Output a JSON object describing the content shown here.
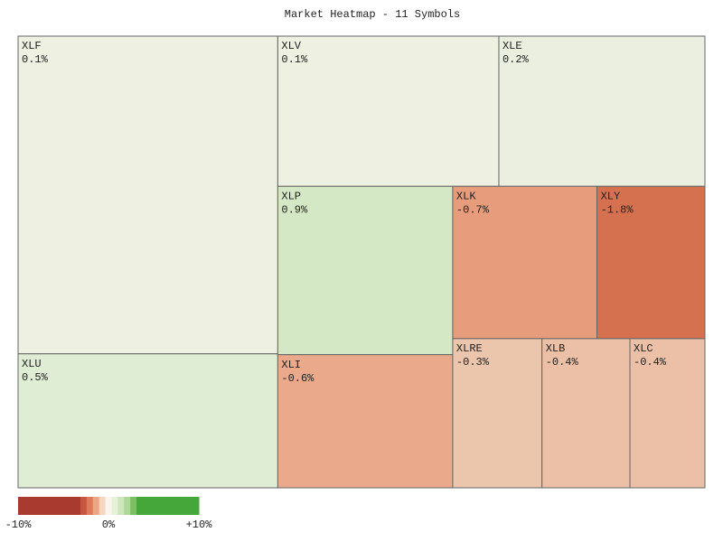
{
  "chart_data": {
    "type": "treemap",
    "title": "Market Heatmap - 11 Symbols",
    "categories": [
      "XLF",
      "XLU",
      "XLV",
      "XLE",
      "XLP",
      "XLI",
      "XLK",
      "XLY",
      "XLRE",
      "XLB",
      "XLC"
    ],
    "values": [
      0.1,
      0.5,
      0.1,
      0.2,
      0.9,
      -0.6,
      -0.7,
      -1.8,
      -0.3,
      -0.4,
      -0.4
    ],
    "value_labels": [
      "0.1%",
      "0.5%",
      "0.1%",
      "0.2%",
      "0.9%",
      "-0.6%",
      "-0.7%",
      "-1.8%",
      "-0.3%",
      "-0.4%",
      "-0.4%"
    ],
    "sizes": [
      100737,
      42476,
      40533,
      37785,
      35953,
      28431,
      26827,
      20072,
      16254,
      16014,
      13659
    ],
    "colors": [
      "#eef0e2",
      "#e0edd5",
      "#eef0e2",
      "#ebefe0",
      "#d5e8c5",
      "#e9a98a",
      "#e79c7b",
      "#d5714e",
      "#ecc5ad",
      "#ebc0a6",
      "#ebc0a6"
    ],
    "colorbar": {
      "lim": [
        -10,
        10
      ],
      "ticks": [
        {
          "value": -10,
          "label": "-10%"
        },
        {
          "value": 0,
          "label": "0%"
        },
        {
          "value": 10,
          "label": "+10%"
        }
      ],
      "colors": [
        "#a83a2f",
        "#a83a2f",
        "#a83a2f",
        "#a83a2f",
        "#a83a2f",
        "#a83a2f",
        "#a83a2f",
        "#a83a2f",
        "#a83a2f",
        "#a83a2f",
        "#c8553e",
        "#df7b5c",
        "#eca684",
        "#f5d6c0",
        "#fbf5ee",
        "#e6f2d8",
        "#cfe6bb",
        "#aed79a",
        "#7cbf63",
        "#45a73a",
        "#45a73a",
        "#45a73a",
        "#45a73a",
        "#45a73a",
        "#45a73a",
        "#45a73a",
        "#45a73a",
        "#45a73a",
        "#45a73a"
      ]
    }
  }
}
